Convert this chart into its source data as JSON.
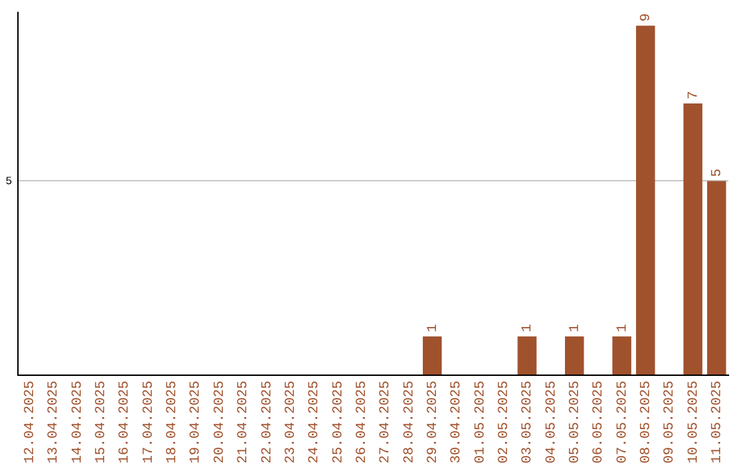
{
  "chart_data": {
    "type": "bar",
    "categories": [
      "12.04.2025",
      "13.04.2025",
      "14.04.2025",
      "15.04.2025",
      "16.04.2025",
      "17.04.2025",
      "18.04.2025",
      "19.04.2025",
      "20.04.2025",
      "21.04.2025",
      "22.04.2025",
      "23.04.2025",
      "24.04.2025",
      "25.04.2025",
      "26.04.2025",
      "27.04.2025",
      "28.04.2025",
      "29.04.2025",
      "30.04.2025",
      "01.05.2025",
      "02.05.2025",
      "03.05.2025",
      "04.05.2025",
      "05.05.2025",
      "06.05.2025",
      "07.05.2025",
      "08.05.2025",
      "09.05.2025",
      "10.05.2025",
      "11.05.2025"
    ],
    "values": [
      null,
      null,
      null,
      null,
      null,
      null,
      null,
      null,
      null,
      null,
      null,
      null,
      null,
      null,
      null,
      null,
      null,
      1,
      null,
      null,
      null,
      1,
      null,
      1,
      null,
      1,
      9,
      null,
      7,
      5
    ],
    "data_labels": true,
    "color": "#a0522d",
    "ylim": [
      0,
      9.35
    ],
    "yticks": [
      {
        "value": 0,
        "label": null
      },
      5
    ],
    "grid": "y"
  }
}
